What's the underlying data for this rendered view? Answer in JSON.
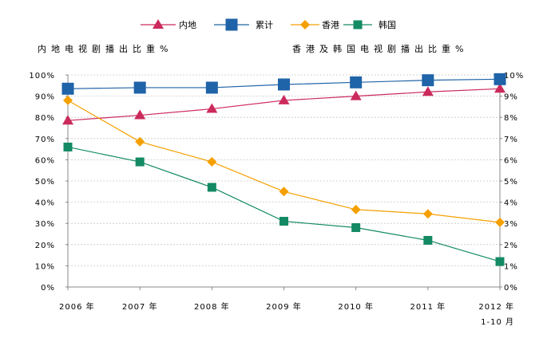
{
  "chart_data": {
    "type": "line",
    "x": [
      "2006 年",
      "2007 年",
      "2008 年",
      "2009 年",
      "2010 年",
      "2011 年",
      "2012 年"
    ],
    "x_sublabels": [
      "",
      "",
      "",
      "",
      "",
      "",
      "1-10 月"
    ],
    "left_axis_label": "内地电视剧播出比重%",
    "right_axis_label": "香港及韩国电视剧播出比重%",
    "left_ticks": [
      "0%",
      "10%",
      "20%",
      "30%",
      "40%",
      "50%",
      "60%",
      "70%",
      "80%",
      "90%",
      "100%"
    ],
    "right_ticks": [
      "0%",
      "1%",
      "2%",
      "3%",
      "4%",
      "5%",
      "6%",
      "7%",
      "8%",
      "9%",
      "10%"
    ],
    "left_ylim": [
      0,
      100
    ],
    "right_ylim": [
      0,
      10
    ],
    "grid": true,
    "legend_position": "top-center",
    "series": [
      {
        "name": "内地",
        "axis": "left",
        "color": "#cc2a5c",
        "marker": "triangle",
        "values": [
          78.5,
          81.0,
          84.0,
          88.0,
          90.0,
          92.0,
          93.5
        ]
      },
      {
        "name": "累计",
        "axis": "left",
        "color": "#1f63a8",
        "marker": "square",
        "values": [
          93.5,
          94.0,
          94.0,
          95.5,
          96.5,
          97.5,
          98.0
        ]
      },
      {
        "name": "香港",
        "axis": "right",
        "color": "#f5a000",
        "marker": "diamond",
        "values": [
          8.8,
          6.85,
          5.9,
          4.5,
          3.65,
          3.45,
          3.05
        ]
      },
      {
        "name": "韩国",
        "axis": "right",
        "color": "#138a63",
        "marker": "square-small",
        "values": [
          6.6,
          5.9,
          4.7,
          3.1,
          2.8,
          2.2,
          1.2
        ]
      }
    ]
  }
}
